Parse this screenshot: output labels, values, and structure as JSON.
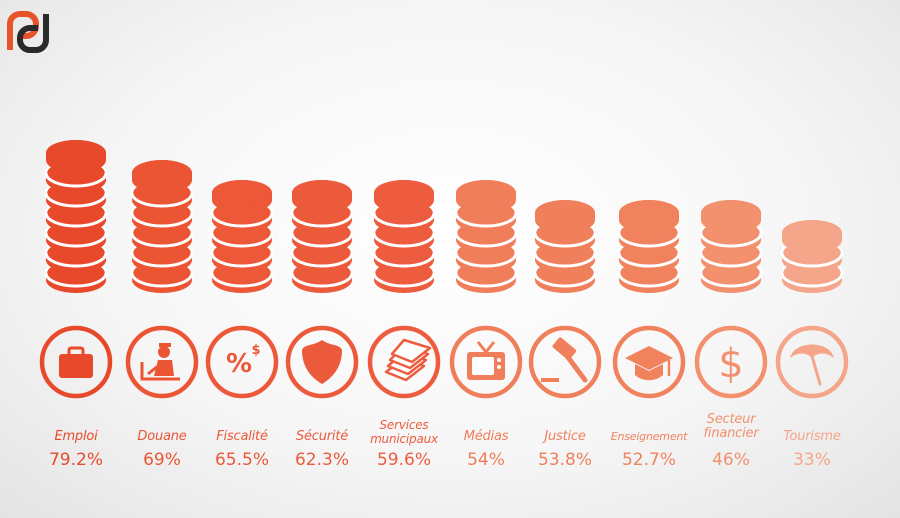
{
  "colors": {
    "logo_orange": "#e8542a",
    "logo_dark": "#2a2a2a"
  },
  "chart_data": {
    "type": "bar",
    "title": "",
    "xlabel": "",
    "ylabel": "",
    "ylim": [
      0,
      100
    ],
    "categories": [
      "Emploi",
      "Douane",
      "Fiscalité",
      "Sécurité",
      "Services municipaux",
      "Médias",
      "Justice",
      "Enseignement",
      "Secteur financier",
      "Tourisme"
    ],
    "values": [
      79.2,
      69,
      65.5,
      62.3,
      59.6,
      54,
      53.8,
      52.7,
      46,
      33
    ],
    "value_labels": [
      "79.2%",
      "69%",
      "65.5%",
      "62.3%",
      "59.6%",
      "54%",
      "53.8%",
      "52.7%",
      "46%",
      "33%"
    ],
    "colors": [
      "#e8492a",
      "#eb5533",
      "#ec5838",
      "#ec5a3c",
      "#ed5c3e",
      "#f07e5a",
      "#f07f5b",
      "#f1825e",
      "#f3906e",
      "#f5a68a"
    ],
    "icons": [
      "briefcase-icon",
      "customs-officer-icon",
      "percent-dollar-icon",
      "police-shield-icon",
      "documents-stack-icon",
      "television-icon",
      "gavel-icon",
      "graduation-cap-icon",
      "dollar-icon",
      "beach-umbrella-icon"
    ],
    "grid": false,
    "legend": "none"
  }
}
